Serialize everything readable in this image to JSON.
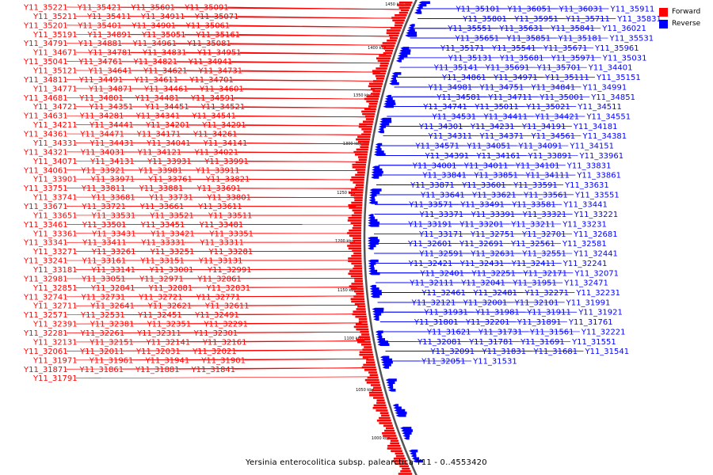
{
  "title": "Yersinia enterocolitica subsp. palearctica Y11 - 0..4553420",
  "legend": [
    {
      "label": "Forward",
      "color": "#ff0000"
    },
    {
      "label": "Reverse",
      "color": "#0000ff"
    }
  ],
  "colors": {
    "forward": "#ff0000",
    "reverse": "#0000ff",
    "backbone": "#555555"
  },
  "ticks": [
    "1000 kbp",
    "1050 kbp",
    "1100 kbp",
    "1150 kbp",
    "1200 kbp",
    "1250 kbp",
    "1300 kbp",
    "1350 kbp",
    "1400 kbp",
    "1450 kbp",
    "1500 kbp"
  ],
  "forward_labels": [
    "Y11_35221",
    "Y11_35421",
    "Y11_35601",
    "Y11_35091",
    "Y11_35211",
    "Y11_35411",
    "Y11_34911",
    "Y11_35071",
    "Y11_35201",
    "Y11_35401",
    "Y11_34901",
    "Y11_35061",
    "Y11_35191",
    "Y11_34891",
    "Y11_35051",
    "Y11_35161",
    "Y11_34791",
    "Y11_34881",
    "Y11_34961",
    "Y11_35081",
    "Y11_34671",
    "Y11_34781",
    "Y11_34831",
    "Y11_34951",
    "Y11_35041",
    "Y11_34761",
    "Y11_34821",
    "Y11_34941",
    "Y11_35121",
    "Y11_34641",
    "Y11_34621",
    "Y11_34731",
    "Y11_34811",
    "Y11_34491",
    "Y11_34611",
    "Y11_34701",
    "Y11_34771",
    "Y11_34871",
    "Y11_34461",
    "Y11_34601",
    "Y11_34681",
    "Y11_34801",
    "Y11_34481",
    "Y11_34591",
    "Y11_34721",
    "Y11_34351",
    "Y11_34451",
    "Y11_34521",
    "Y11_34631",
    "Y11_34281",
    "Y11_34341",
    "Y11_34541",
    "Y11_34211",
    "Y11_34441",
    "Y11_34201",
    "Y11_34291",
    "Y11_34361",
    "Y11_34471",
    "Y11_34171",
    "Y11_34261",
    "Y11_34331",
    "Y11_34431",
    "Y11_34041",
    "Y11_34141",
    "Y11_34321",
    "Y11_34031",
    "Y11_34121",
    "Y11_34021",
    "Y11_34071",
    "Y11_34131",
    "Y11_33931",
    "Y11_33991",
    "Y11_34061",
    "Y11_33921",
    "Y11_33981",
    "Y11_33911",
    "Y11_33901",
    "Y11_33971",
    "Y11_33761",
    "Y11_33821",
    "Y11_33751",
    "Y11_33811",
    "Y11_33881",
    "Y11_33691",
    "Y11_33741",
    "Y11_33681",
    "Y11_33731",
    "Y11_33801",
    "Y11_33671",
    "Y11_33721",
    "Y11_33661",
    "Y11_33611",
    "Y11_33651",
    "Y11_33531",
    "Y11_33521",
    "Y11_33511",
    "Y11_33461",
    "Y11_33501",
    "Y11_33451",
    "Y11_33481",
    "Y11_33361",
    "Y11_33431",
    "Y11_33421",
    "Y11_33351",
    "Y11_33341",
    "Y11_33411",
    "Y11_33331",
    "Y11_33311",
    "Y11_33271",
    "Y11_33261",
    "Y11_33251",
    "Y11_33281",
    "Y11_33241",
    "Y11_33161",
    "Y11_33151",
    "Y11_33131",
    "Y11_33181",
    "Y11_33141",
    "Y11_33001",
    "Y11_32991",
    "Y11_32981",
    "Y11_33051",
    "Y11_32971",
    "Y11_32861",
    "Y11_32851",
    "Y11_32841",
    "Y11_32881",
    "Y11_32831",
    "Y11_32741",
    "Y11_32731",
    "Y11_32721",
    "Y11_32771",
    "Y11_32711",
    "Y11_32641",
    "Y11_32621",
    "Y11_32611",
    "Y11_32571",
    "Y11_32531",
    "Y11_32451",
    "Y11_32491",
    "Y11_32391",
    "Y11_32381",
    "Y11_32351",
    "Y11_32291",
    "Y11_32281",
    "Y11_32261",
    "Y11_32311",
    "Y11_32301",
    "Y11_32131",
    "Y11_32151",
    "Y11_32141",
    "Y11_32161",
    "Y11_32061",
    "Y11_32011",
    "Y11_32031",
    "Y11_32021",
    "Y11_31971",
    "Y11_31961",
    "Y11_31941",
    "Y11_31901",
    "Y11_31871",
    "Y11_31861",
    "Y11_31881",
    "Y11_31841",
    "Y11_31791"
  ],
  "reverse_labels": [
    "Y11_35101",
    "Y11_36051",
    "Y11_36031",
    "Y11_35911",
    "Y11_35801",
    "Y11_35951",
    "Y11_35711",
    "Y11_35831",
    "Y11_35551",
    "Y11_35631",
    "Y11_35841",
    "Y11_36021",
    "Y11_35651",
    "Y11_35851",
    "Y11_35181",
    "Y11_35531",
    "Y11_35171",
    "Y11_35541",
    "Y11_35671",
    "Y11_35961",
    "Y11_35131",
    "Y11_35681",
    "Y11_35971",
    "Y11_35031",
    "Y11_35141",
    "Y11_35691",
    "Y11_35701",
    "Y11_34401",
    "Y11_34861",
    "Y11_34971",
    "Y11_35111",
    "Y11_35151",
    "Y11_34981",
    "Y11_34751",
    "Y11_34841",
    "Y11_34991",
    "Y11_34581",
    "Y11_34711",
    "Y11_35001",
    "Y11_34851",
    "Y11_34741",
    "Y11_35011",
    "Y11_35021",
    "Y11_34511",
    "Y11_34531",
    "Y11_34411",
    "Y11_34421",
    "Y11_34551",
    "Y11_34301",
    "Y11_34231",
    "Y11_34191",
    "Y11_34181",
    "Y11_34311",
    "Y11_34371",
    "Y11_34561",
    "Y11_34381",
    "Y11_34571",
    "Y11_34051",
    "Y11_34091",
    "Y11_34151",
    "Y11_34391",
    "Y11_34161",
    "Y11_33891",
    "Y11_33961",
    "Y11_34001",
    "Y11_34011",
    "Y11_34101",
    "Y11_33831",
    "Y11_33841",
    "Y11_33851",
    "Y11_34111",
    "Y11_33861",
    "Y11_33871",
    "Y11_33601",
    "Y11_33591",
    "Y11_33631",
    "Y11_33641",
    "Y11_33621",
    "Y11_33561",
    "Y11_33551",
    "Y11_33571",
    "Y11_33491",
    "Y11_33581",
    "Y11_33441",
    "Y11_33371",
    "Y11_33391",
    "Y11_33321",
    "Y11_33221",
    "Y11_33191",
    "Y11_33201",
    "Y11_33211",
    "Y11_33231",
    "Y11_33171",
    "Y11_32751",
    "Y11_32701",
    "Y11_32681",
    "Y11_32601",
    "Y11_32691",
    "Y11_32561",
    "Y11_32581",
    "Y11_32591",
    "Y11_32631",
    "Y11_32551",
    "Y11_32441",
    "Y11_32421",
    "Y11_32431",
    "Y11_32411",
    "Y11_32241",
    "Y11_32401",
    "Y11_32251",
    "Y11_32171",
    "Y11_32071",
    "Y11_32111",
    "Y11_32041",
    "Y11_31951",
    "Y11_32471",
    "Y11_32461",
    "Y11_32481",
    "Y11_32271",
    "Y11_32231",
    "Y11_32121",
    "Y11_32001",
    "Y11_32101",
    "Y11_31991",
    "Y11_31931",
    "Y11_31981",
    "Y11_31911",
    "Y11_31921",
    "Y11_31801",
    "Y11_32201",
    "Y11_31891",
    "Y11_31761",
    "Y11_31621",
    "Y11_31731",
    "Y11_31561",
    "Y11_32221",
    "Y11_32081",
    "Y11_31781",
    "Y11_31691",
    "Y11_31551",
    "Y11_32091",
    "Y11_31831",
    "Y11_31681",
    "Y11_31541",
    "Y11_32051",
    "Y11_31531"
  ]
}
